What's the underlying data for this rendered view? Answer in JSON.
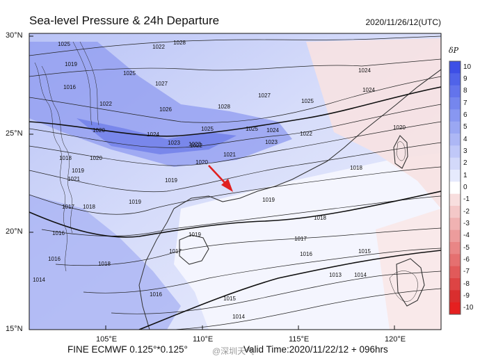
{
  "title": "Sea-level Pressure & 24h Departure",
  "datetime": "2020/11/26/12(UTC)",
  "footer_left": "FINE ECMWF 0.125°*0.125°",
  "valid_time": "Valid Time:2020/11/22/12 + 096hrs",
  "watermark": "@深圳天气",
  "lat_labels": [
    "30°N",
    "25°N",
    "20°N",
    "15°N"
  ],
  "lon_labels": [
    "105°E",
    "110°E",
    "115°E",
    "120°E"
  ],
  "legend": {
    "title": "δP",
    "labels": [
      "10",
      "9",
      "8",
      "7",
      "6",
      "5",
      "4",
      "3",
      "2",
      "1",
      "0",
      "-1",
      "-2",
      "-3",
      "-4",
      "-5",
      "-6",
      "-7",
      "-8",
      "-9",
      "-10"
    ],
    "colors": [
      "#3d4fe6",
      "#5063e9",
      "#6374ec",
      "#7586ee",
      "#8897f1",
      "#9aa7f3",
      "#adb7f5",
      "#c0c8f8",
      "#d3d9fa",
      "#e6eafd",
      "#ffffff",
      "#f8dede",
      "#f4c8c8",
      "#f0b2b2",
      "#ec9c9c",
      "#e98686",
      "#e57070",
      "#e15a5a",
      "#dd4444",
      "#d92e2e",
      "#e52020"
    ]
  },
  "isobar_labels": [
    "1025",
    "1028",
    "1019",
    "1016",
    "1022",
    "1025",
    "1027",
    "1026",
    "1023",
    "1028",
    "1027",
    "1024",
    "1020",
    "1022",
    "1024",
    "1023",
    "1025",
    "1025",
    "1024",
    "1023",
    "1022",
    "1021",
    "1020",
    "1019",
    "1018",
    "1019",
    "1017",
    "1016",
    "1018",
    "1019",
    "1020",
    "1021",
    "1019",
    "1018",
    "1017",
    "1016",
    "1015",
    "1014",
    "1013",
    "1016",
    "1015",
    "1014",
    "1018",
    "1017",
    "1016",
    "1014",
    "1024",
    "1025",
    "1022",
    "1018",
    "1019",
    "1020"
  ]
}
